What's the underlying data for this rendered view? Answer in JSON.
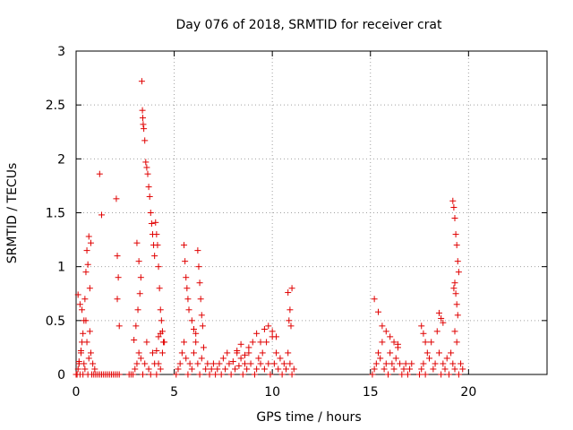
{
  "chart_data": {
    "type": "scatter",
    "title": "Day 076 of 2018, SRMTID for receiver crat",
    "xlabel": "GPS time / hours",
    "ylabel": "SRMTID / TECUs",
    "xlim": [
      0,
      24
    ],
    "ylim": [
      0,
      3
    ],
    "xticks": [
      0,
      5,
      10,
      15,
      20
    ],
    "yticks": [
      0,
      0.5,
      1,
      1.5,
      2,
      2.5,
      3
    ],
    "xtick_labels": [
      "0",
      "5",
      "10",
      "15",
      "20"
    ],
    "ytick_labels": [
      "0",
      "0.5",
      "1",
      "1.5",
      "2",
      "2.5",
      "3"
    ],
    "grid": true,
    "marker": "plus",
    "color": "#e00000",
    "series": [
      {
        "name": "SRMTID",
        "x": [
          0.0,
          0.05,
          0.1,
          0.15,
          0.2,
          0.25,
          0.3,
          0.35,
          0.4,
          0.45,
          0.5,
          0.55,
          0.6,
          0.65,
          0.7,
          0.75,
          0.8,
          0.85,
          0.9,
          0.95,
          0.1,
          0.2,
          0.3,
          0.4,
          0.5,
          0.6,
          0.7,
          0.55,
          0.65,
          0.75,
          0.45,
          0.35,
          0.25,
          0.15,
          1.0,
          1.1,
          1.2,
          1.3,
          1.4,
          1.5,
          1.6,
          1.7,
          1.8,
          1.9,
          2.0,
          2.1,
          2.2,
          1.2,
          1.3,
          2.05,
          2.1,
          2.15,
          2.1,
          2.2,
          2.7,
          2.8,
          2.9,
          3.0,
          3.1,
          3.2,
          3.3,
          3.4,
          3.5,
          3.6,
          3.7,
          3.8,
          3.9,
          4.0,
          4.1,
          4.2,
          4.3,
          4.4,
          4.5,
          3.35,
          3.38,
          3.4,
          3.42,
          3.45,
          3.5,
          3.55,
          3.6,
          3.65,
          3.7,
          3.75,
          3.8,
          3.85,
          3.9,
          3.95,
          4.0,
          3.1,
          3.2,
          3.3,
          3.25,
          3.15,
          3.05,
          2.95,
          4.05,
          4.1,
          4.15,
          4.2,
          4.25,
          4.3,
          4.35,
          4.4,
          4.45,
          4.2,
          4.3,
          4.1,
          5.1,
          5.2,
          5.3,
          5.4,
          5.5,
          5.6,
          5.7,
          5.8,
          5.9,
          6.0,
          6.1,
          6.2,
          6.3,
          6.4,
          6.5,
          6.6,
          6.7,
          6.8,
          6.9,
          7.0,
          5.5,
          5.55,
          5.6,
          5.65,
          5.7,
          5.75,
          6.2,
          6.25,
          6.3,
          6.35,
          6.4,
          6.45,
          5.9,
          6.0,
          6.1,
          7.1,
          7.2,
          7.3,
          7.4,
          7.5,
          7.6,
          7.7,
          7.8,
          7.9,
          8.0,
          8.1,
          8.2,
          8.3,
          8.4,
          8.5,
          8.6,
          8.7,
          8.8,
          8.9,
          9.0,
          9.1,
          9.2,
          9.3,
          9.4,
          9.5,
          9.6,
          9.7,
          9.8,
          9.9,
          10.0,
          10.1,
          10.2,
          10.3,
          10.4,
          10.5,
          10.6,
          10.7,
          10.8,
          10.9,
          11.0,
          11.1,
          8.2,
          8.4,
          8.6,
          8.8,
          9.2,
          9.4,
          9.6,
          9.8,
          10.0,
          10.2,
          10.8,
          10.9,
          11.0,
          10.85,
          10.95,
          15.1,
          15.2,
          15.3,
          15.4,
          15.5,
          15.6,
          15.7,
          15.8,
          15.9,
          16.0,
          16.1,
          16.2,
          16.3,
          16.4,
          16.5,
          16.6,
          16.7,
          16.8,
          16.9,
          17.0,
          17.1,
          15.2,
          15.4,
          15.6,
          15.8,
          16.0,
          16.2,
          16.4,
          17.5,
          17.6,
          17.7,
          17.8,
          17.9,
          18.0,
          18.1,
          18.2,
          18.3,
          18.4,
          18.5,
          18.6,
          18.7,
          18.8,
          18.9,
          19.0,
          19.1,
          19.2,
          19.3,
          19.4,
          19.5,
          19.6,
          19.7,
          17.6,
          17.7,
          17.8,
          18.5,
          18.6,
          18.7,
          19.2,
          19.25,
          19.3,
          19.35,
          19.4,
          19.45,
          19.5,
          19.3,
          19.35,
          19.4,
          19.45,
          19.25,
          19.3
        ],
        "y": [
          0.0,
          0.0,
          0.05,
          0.1,
          0.0,
          0.2,
          0.3,
          0.0,
          0.1,
          0.05,
          0.5,
          0.3,
          0.0,
          0.15,
          0.4,
          0.2,
          0.0,
          0.1,
          0.0,
          0.05,
          0.74,
          0.65,
          0.6,
          0.5,
          0.95,
          1.02,
          0.8,
          1.15,
          1.28,
          1.22,
          0.7,
          0.38,
          0.22,
          0.12,
          0.0,
          0.0,
          0.0,
          0.0,
          0.0,
          0.0,
          0.0,
          0.0,
          0.0,
          0.0,
          0.0,
          0.0,
          0.0,
          1.86,
          1.48,
          1.63,
          1.1,
          0.9,
          0.7,
          0.45,
          0.0,
          0.0,
          0.0,
          0.05,
          0.1,
          0.2,
          0.15,
          0.0,
          0.1,
          0.3,
          0.05,
          0.0,
          0.2,
          0.1,
          0.0,
          0.1,
          0.05,
          0.2,
          0.3,
          2.72,
          2.45,
          2.38,
          2.32,
          2.28,
          2.17,
          1.97,
          1.92,
          1.86,
          1.74,
          1.65,
          1.5,
          1.4,
          1.3,
          1.2,
          1.1,
          1.22,
          1.05,
          0.9,
          0.75,
          0.6,
          0.45,
          0.32,
          1.41,
          1.3,
          1.2,
          1.0,
          0.8,
          0.6,
          0.5,
          0.4,
          0.3,
          0.35,
          0.38,
          0.22,
          0.0,
          0.05,
          0.1,
          0.2,
          0.3,
          0.15,
          0.0,
          0.1,
          0.05,
          0.2,
          0.3,
          0.1,
          0.0,
          0.15,
          0.25,
          0.05,
          0.1,
          0.0,
          0.05,
          0.1,
          1.2,
          1.05,
          0.9,
          0.8,
          0.7,
          0.6,
          1.15,
          1.0,
          0.85,
          0.7,
          0.55,
          0.45,
          0.5,
          0.42,
          0.38,
          0.0,
          0.05,
          0.1,
          0.0,
          0.15,
          0.05,
          0.2,
          0.1,
          0.0,
          0.12,
          0.05,
          0.2,
          0.08,
          0.15,
          0.0,
          0.1,
          0.05,
          0.2,
          0.1,
          0.3,
          0.0,
          0.05,
          0.15,
          0.1,
          0.2,
          0.05,
          0.3,
          0.1,
          0.0,
          0.35,
          0.1,
          0.2,
          0.05,
          0.15,
          0.0,
          0.1,
          0.05,
          0.2,
          0.1,
          0.0,
          0.05,
          0.22,
          0.28,
          0.18,
          0.25,
          0.38,
          0.3,
          0.42,
          0.45,
          0.4,
          0.35,
          0.76,
          0.6,
          0.8,
          0.5,
          0.45,
          0.0,
          0.05,
          0.1,
          0.2,
          0.15,
          0.3,
          0.05,
          0.1,
          0.0,
          0.2,
          0.1,
          0.05,
          0.15,
          0.25,
          0.1,
          0.0,
          0.05,
          0.1,
          0.0,
          0.05,
          0.1,
          0.7,
          0.58,
          0.45,
          0.4,
          0.35,
          0.3,
          0.28,
          0.0,
          0.05,
          0.1,
          0.0,
          0.2,
          0.15,
          0.3,
          0.05,
          0.1,
          0.4,
          0.2,
          0.0,
          0.1,
          0.05,
          0.15,
          0.0,
          0.2,
          0.1,
          0.05,
          0.3,
          0.0,
          0.1,
          0.05,
          0.45,
          0.38,
          0.3,
          0.57,
          0.52,
          0.48,
          1.61,
          1.55,
          1.45,
          1.3,
          1.2,
          1.05,
          0.95,
          0.85,
          0.75,
          0.65,
          0.55,
          0.8,
          0.4
        ]
      }
    ]
  }
}
